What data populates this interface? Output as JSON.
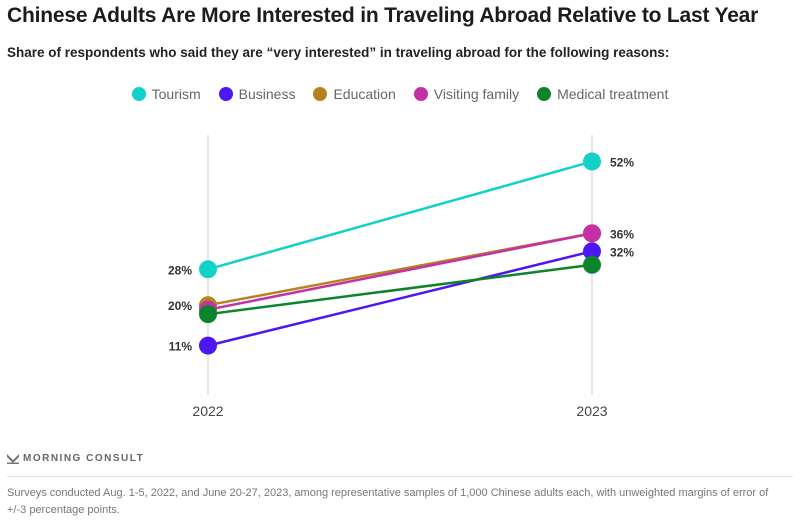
{
  "header": {
    "title": "Chinese Adults Are More Interested in Traveling Abroad Relative to Last Year",
    "subtitle": "Share of respondents who said they are “very interested” in traveling abroad for the following reasons:"
  },
  "chart_data": {
    "type": "line",
    "title": "Chinese Adults Are More Interested in Traveling Abroad Relative to Last Year",
    "subtitle": "Share of respondents who said they are “very interested” in traveling abroad for the following reasons:",
    "x": [
      "2022",
      "2023"
    ],
    "xlabel": "",
    "ylabel": "",
    "ylim": [
      0,
      58
    ],
    "grid": "vertical lines at each year",
    "legend_position": "top-center",
    "series": [
      {
        "name": "Tourism",
        "color": "#12d1c8",
        "values": [
          28,
          52
        ],
        "labels": [
          "28%",
          "52%"
        ]
      },
      {
        "name": "Business",
        "color": "#4d17f2",
        "values": [
          11,
          32
        ],
        "labels": [
          "11%",
          "32%"
        ]
      },
      {
        "name": "Education",
        "color": "#b58220",
        "values": [
          20,
          36
        ],
        "labels": [
          "20%",
          ""
        ]
      },
      {
        "name": "Visiting family",
        "color": "#c431a6",
        "values": [
          19,
          36
        ],
        "labels": [
          "",
          "36%"
        ]
      },
      {
        "name": "Medical treatment",
        "color": "#0b842c",
        "values": [
          18,
          29
        ],
        "labels": [
          "",
          ""
        ]
      }
    ]
  },
  "footer": {
    "brand": "MORNING CONSULT",
    "note": "Surveys conducted Aug. 1-5, 2022, and June 20-27, 2023, among representative samples of 1,000 Chinese adults each, with unweighted margins of error of +/-3 percentage points."
  }
}
